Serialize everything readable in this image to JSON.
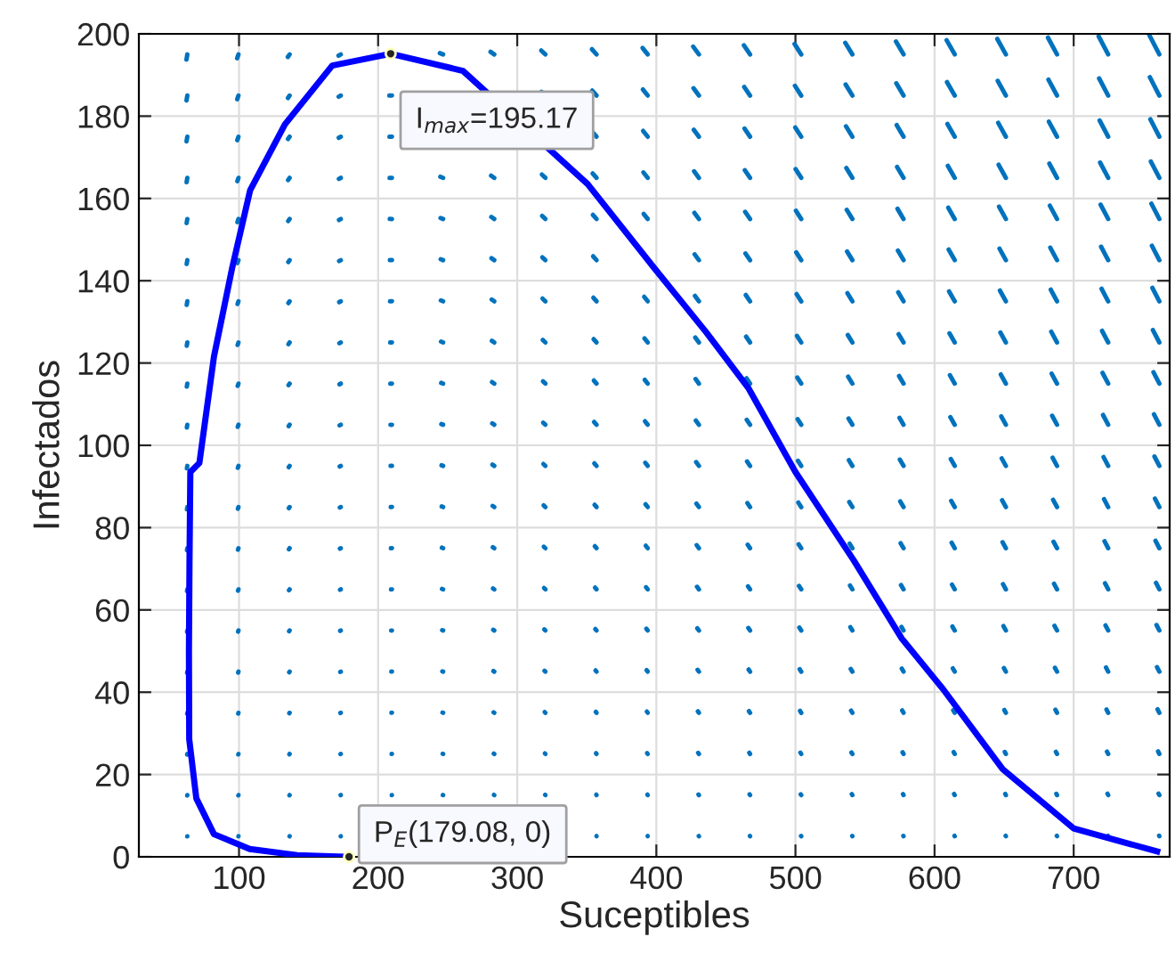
{
  "chart_data": {
    "type": "line",
    "xlabel": "Suceptibles",
    "ylabel": "Infectados",
    "series": [
      {
        "color": "#0000ff",
        "x": [
          760,
          700,
          649,
          606,
          576.5,
          542,
          500,
          466,
          436,
          398,
          350.6,
          261,
          209,
          167,
          133,
          108,
          95,
          82,
          71.5,
          65,
          64.4,
          64,
          64.2,
          69.3,
          82,
          107.7,
          141.8,
          179.08
        ],
        "values": [
          1.3,
          6.9,
          21.3,
          40.8,
          53,
          72,
          93.5,
          114,
          127.4,
          143.3,
          163.5,
          191,
          195.17,
          192.3,
          178,
          162,
          143,
          121.6,
          95.7,
          93.5,
          71.9,
          50.2,
          28.6,
          14.2,
          5.5,
          1.9,
          0.4,
          0
        ]
      }
    ],
    "xlim": [
      28,
      769
    ],
    "ylim": [
      0,
      200
    ],
    "xticks": [
      100,
      200,
      300,
      400,
      500,
      600,
      700
    ],
    "yticks": [
      0,
      20,
      40,
      60,
      80,
      100,
      120,
      140,
      160,
      180,
      200
    ],
    "grid": true,
    "marker": "none",
    "line_style": "solid",
    "annotations": [
      {
        "text": "I$_{max}$=195.17",
        "x": 209,
        "y": 195.17
      },
      {
        "text": "P$_{E}$(179.08, 0)",
        "x": 179.08,
        "y": 0
      }
    ]
  }
}
